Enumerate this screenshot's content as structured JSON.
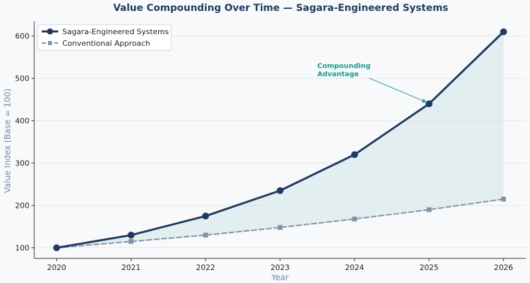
{
  "chart_data": {
    "type": "line",
    "title": "Value Compounding Over Time — Sagara-Engineered Systems",
    "xlabel": "Year",
    "ylabel": "Value Index (Base = 100)",
    "x": [
      2020,
      2021,
      2022,
      2023,
      2024,
      2025,
      2026
    ],
    "xlim": [
      2019.7,
      2026.3
    ],
    "ylim": [
      75,
      635
    ],
    "yticks": [
      100,
      200,
      300,
      400,
      500,
      600
    ],
    "grid": true,
    "legend_position": "top-left",
    "series": [
      {
        "name": "Sagara-Engineered Systems",
        "values": [
          100,
          130,
          175,
          235,
          320,
          440,
          610
        ],
        "color": "#1f3a5f",
        "marker": "circle",
        "linestyle": "solid"
      },
      {
        "name": "Conventional Approach",
        "values": [
          100,
          115,
          130,
          148,
          168,
          190,
          215
        ],
        "color": "#8391a8",
        "marker": "square",
        "linestyle": "dashed"
      }
    ],
    "fill_between": {
      "color": "#cfe6e6"
    },
    "annotations": [
      {
        "text_lines": [
          "Compounding",
          "Advantage"
        ],
        "x_point": 2025,
        "y_point": 440,
        "x_text": 2023.5,
        "y_text": 510,
        "color": "#1a9a96"
      }
    ]
  }
}
